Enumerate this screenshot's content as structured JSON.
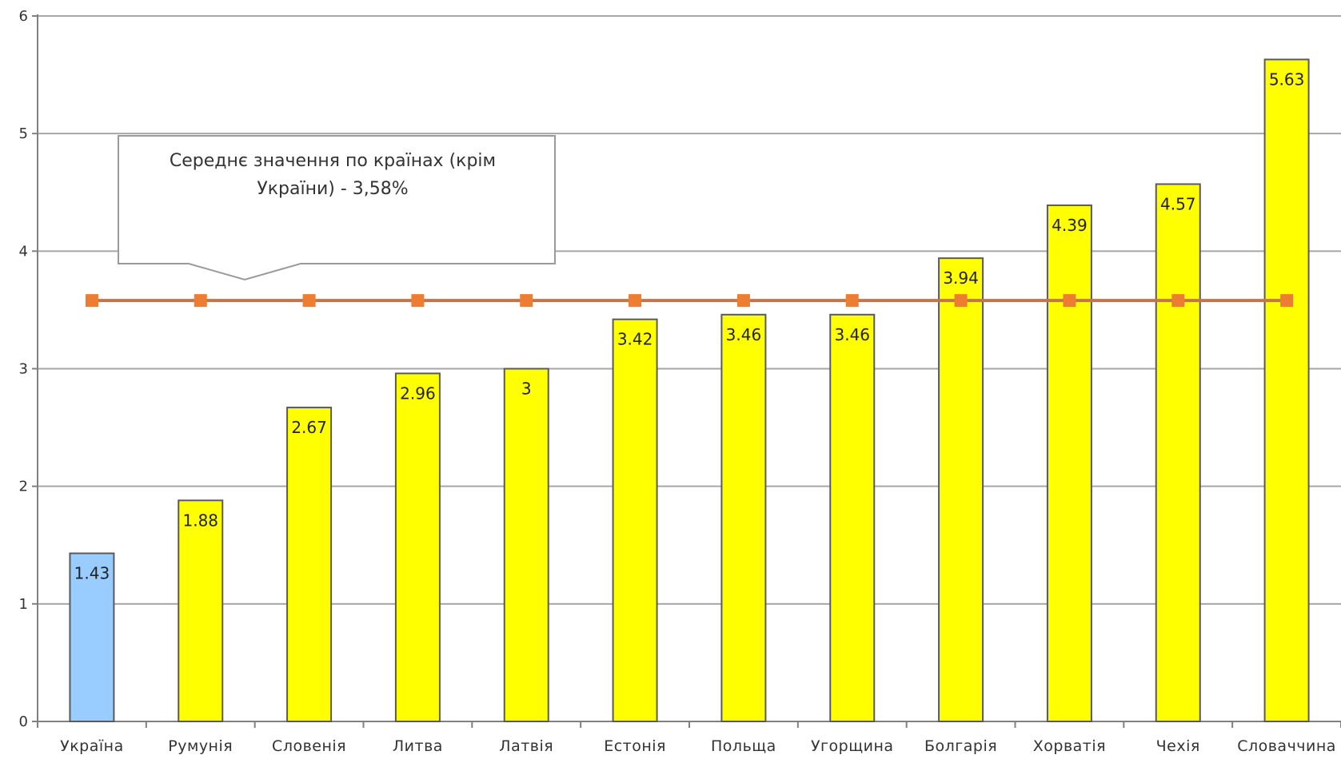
{
  "chart_data": {
    "type": "bar",
    "categories": [
      "Україна",
      "Румунія",
      "Словенія",
      "Литва",
      "Латвія",
      "Естонія",
      "Польща",
      "Угорщина",
      "Болгарія",
      "Хорватія",
      "Чехія",
      "Словаччина"
    ],
    "series": [
      {
        "values": [
          1.43,
          1.88,
          2.67,
          2.96,
          3,
          3.42,
          3.46,
          3.46,
          3.94,
          4.39,
          4.57,
          5.63
        ]
      },
      {
        "type": "line",
        "values": [
          3.58,
          3.58,
          3.58,
          3.58,
          3.58,
          3.58,
          3.58,
          3.58,
          3.58,
          3.58,
          3.58,
          3.58
        ]
      }
    ],
    "data_labels": [
      "1.43",
      "1.88",
      "2.67",
      "2.96",
      "3",
      "3.42",
      "3.46",
      "3.46",
      "3.94",
      "4.39",
      "4.57",
      "5.63"
    ],
    "ylim": [
      0,
      6
    ],
    "yticks": [
      "0",
      "1",
      "2",
      "3",
      "4",
      "5",
      "6"
    ],
    "grid": true,
    "annotation": [
      "Середнє значення по країнах (крім",
      "України) - 3,58%"
    ],
    "colors": {
      "highlight_bar": "#99CCFF",
      "bar": "#FFFF00",
      "bar_border": "#5a5a5a",
      "average_line": "#C0764C",
      "average_marker": "#ED7D31",
      "gridline": "#A6A6A6",
      "axis": "#808080"
    }
  }
}
